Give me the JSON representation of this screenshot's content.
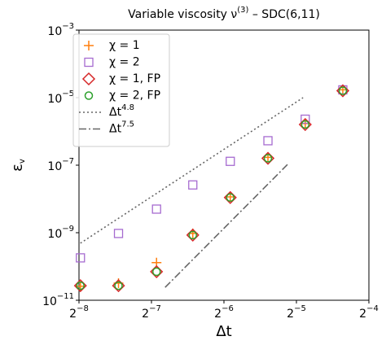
{
  "chart_data": {
    "type": "scatter",
    "title": {
      "before": "Variable viscosity ν",
      "sup": "(3)",
      "after": " – SDC(6,11)"
    },
    "x_label": "Δt",
    "y_label": {
      "base": "ε",
      "sub": "v"
    },
    "xscale": "log2",
    "yscale": "log10",
    "xlim": [
      0.00390625,
      0.0625
    ],
    "ylim": [
      1e-11,
      0.001
    ],
    "xticks": [
      {
        "value": 0.00390625,
        "label": "2",
        "exponent": "−8"
      },
      {
        "value": 0.0078125,
        "label": "2",
        "exponent": "−7"
      },
      {
        "value": 0.015625,
        "label": "2",
        "exponent": "−6"
      },
      {
        "value": 0.03125,
        "label": "2",
        "exponent": "−5"
      },
      {
        "value": 0.0625,
        "label": "2",
        "exponent": "−4"
      }
    ],
    "yticks": [
      {
        "value": 1e-11,
        "label": "10",
        "exponent": "−11"
      },
      {
        "value": 1e-09,
        "label": "10",
        "exponent": "−9"
      },
      {
        "value": 1e-07,
        "label": "10",
        "exponent": "−7"
      },
      {
        "value": 1e-05,
        "label": "10",
        "exponent": "−5"
      },
      {
        "value": 0.001,
        "label": "10",
        "exponent": "−3"
      }
    ],
    "x": [
      0.00396,
      0.0057,
      0.0082,
      0.0116,
      0.0166,
      0.0238,
      0.034,
      0.0487
    ],
    "series": [
      {
        "name": "χ = 1",
        "marker": "plus",
        "color": "#ff7f0e",
        "values": [
          2.6e-11,
          3.2e-11,
          1.3e-10,
          9.5e-10,
          1.15e-08,
          1.7e-07,
          1.7e-06,
          1.7e-05
        ]
      },
      {
        "name": "χ = 2",
        "marker": "square",
        "color": "#a66bd0",
        "values": [
          1.8e-10,
          9.5e-10,
          5e-09,
          2.6e-08,
          1.3e-07,
          5.3e-07,
          2.3e-06,
          1.7e-05
        ]
      },
      {
        "name": "χ = 1, FP",
        "marker": "diamond",
        "color": "#d62728",
        "values": [
          2.7e-11,
          2.7e-11,
          7e-11,
          8.5e-10,
          1.1e-08,
          1.6e-07,
          1.6e-06,
          1.6e-05
        ]
      },
      {
        "name": "χ = 2, FP",
        "marker": "circle",
        "color": "#2ca02c",
        "values": [
          2.7e-11,
          2.7e-11,
          7e-11,
          8.5e-10,
          1.1e-08,
          1.6e-07,
          1.6e-06,
          1.6e-05
        ]
      }
    ],
    "lines": [
      {
        "name": "Δt",
        "exponent": "4.8",
        "style": "dotted",
        "color": "#666666",
        "x": [
          0.00396,
          0.0333
        ],
        "values": [
          4.9e-10,
          1e-05
        ]
      },
      {
        "name": "Δt",
        "exponent": "7.5",
        "style": "dashdot",
        "color": "#666666",
        "x": [
          0.0089,
          0.0287
        ],
        "values": [
          2.4e-11,
          1.05e-07
        ]
      }
    ],
    "legend": "upper left"
  }
}
